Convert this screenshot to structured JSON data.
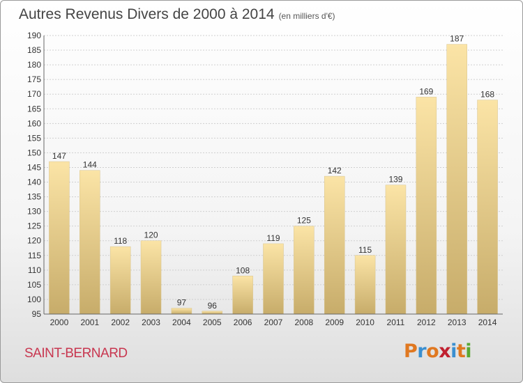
{
  "title": {
    "main": "Autres Revenus Divers de 2000 à 2014",
    "unit": "(en milliers d'€)"
  },
  "place": "SAINT-BERNARD",
  "logo": {
    "text": "Proxiti",
    "colors": [
      "#e07820",
      "#3a8fd0",
      "#e07820",
      "#c02030",
      "#3a8fd0",
      "#e07820",
      "#5aa832"
    ]
  },
  "colors": {
    "bar_light": "#fbe4a6",
    "bar_dark": "#c7ac6a",
    "grid": "#cfcfcf",
    "axis_text": "#333333"
  },
  "chart_data": {
    "type": "bar",
    "categories": [
      "2000",
      "2001",
      "2002",
      "2003",
      "2004",
      "2005",
      "2006",
      "2007",
      "2008",
      "2009",
      "2010",
      "2011",
      "2012",
      "2013",
      "2014"
    ],
    "values": [
      147,
      144,
      118,
      120,
      97,
      96,
      108,
      119,
      125,
      142,
      115,
      139,
      169,
      187,
      168
    ],
    "value_labels": [
      "147",
      "144",
      "118",
      "120",
      "97",
      "96",
      "108",
      "119",
      "125",
      "142",
      "115",
      "139",
      "169",
      "187",
      "168"
    ],
    "ylim": [
      95,
      190
    ],
    "yticks": [
      95,
      100,
      105,
      110,
      115,
      120,
      125,
      130,
      135,
      140,
      145,
      150,
      155,
      160,
      165,
      170,
      175,
      180,
      185,
      190
    ],
    "ytick_labels": [
      "95",
      "100",
      "105",
      "110",
      "115",
      "120",
      "125",
      "130",
      "135",
      "140",
      "145",
      "150",
      "155",
      "160",
      "165",
      "170",
      "175",
      "180",
      "185",
      "190"
    ],
    "grid": true,
    "title": "Autres Revenus Divers de 2000 à 2014",
    "xlabel": "",
    "ylabel": ""
  }
}
